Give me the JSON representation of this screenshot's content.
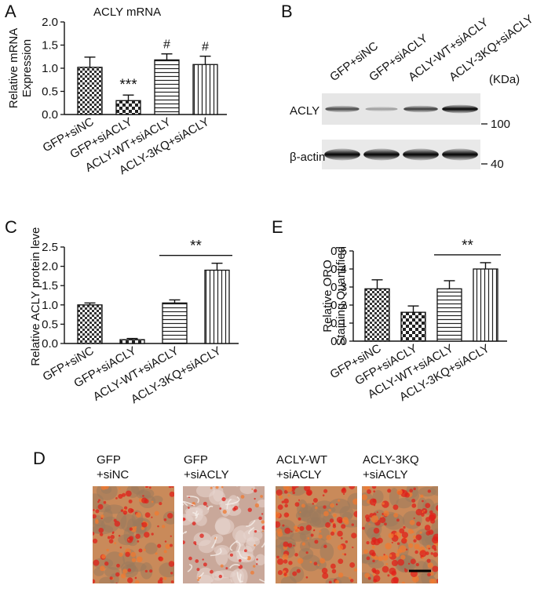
{
  "panels": {
    "A": {
      "letter": "A",
      "title": "ACLY mRNA"
    },
    "B": {
      "letter": "B"
    },
    "C": {
      "letter": "C"
    },
    "D": {
      "letter": "D"
    },
    "E": {
      "letter": "E"
    }
  },
  "blot": {
    "lanes": [
      "GFP+siNC",
      "GFP+siACLY",
      "ACLY-WT+siACLY",
      "ACLY-3KQ+siACLY"
    ],
    "unit_label": "(KDa)",
    "rows": [
      {
        "label": "ACLY",
        "marker": "100",
        "intensities": [
          0.55,
          0.18,
          0.6,
          0.95
        ]
      },
      {
        "label": "β-actin",
        "marker": "40",
        "intensities": [
          0.95,
          0.95,
          0.95,
          0.95
        ]
      }
    ]
  },
  "micrographs": {
    "captions": [
      "GFP\n+siNC",
      "GFP\n+siACLY",
      "ACLY-WT\n+siACLY",
      "ACLY-3KQ\n+siACLY"
    ],
    "stain_density": [
      0.5,
      0.1,
      0.55,
      0.8
    ]
  },
  "chart_data": [
    {
      "id": "A",
      "type": "bar",
      "title": "ACLY mRNA",
      "ylabel": "Relative mRNA\nExpression",
      "xlabel": "",
      "categories": [
        "GFP+siNC",
        "GFP+siACLY",
        "ACLY-WT+siACLY",
        "ACLY-3KQ+siACLY"
      ],
      "values": [
        1.02,
        0.3,
        1.18,
        1.08
      ],
      "errors": [
        0.22,
        0.12,
        0.13,
        0.18
      ],
      "patterns": [
        "checker",
        "checker-big",
        "hlines",
        "vlines"
      ],
      "annotations": [
        "",
        "***",
        "#",
        "#"
      ],
      "ylim": [
        0,
        2.0
      ],
      "yticks": [
        "0.0",
        "0.5",
        "1.0",
        "1.5",
        "2.0"
      ],
      "ytick_values": [
        0,
        0.5,
        1.0,
        1.5,
        2.0
      ],
      "grid": false
    },
    {
      "id": "C",
      "type": "bar",
      "title": "",
      "ylabel": "Relative ACLY protein level",
      "xlabel": "",
      "categories": [
        "GFP+siNC",
        "GFP+siACLY",
        "ACLY-WT+siACLY",
        "ACLY-3KQ+siACLY"
      ],
      "values": [
        1.0,
        0.1,
        1.05,
        1.9
      ],
      "errors": [
        0.05,
        0.03,
        0.08,
        0.18
      ],
      "patterns": [
        "checker",
        "checker-big",
        "hlines",
        "vlines"
      ],
      "significance": {
        "from": 2,
        "to": 3,
        "label": "**"
      },
      "ylim": [
        0,
        2.5
      ],
      "yticks": [
        "0.0",
        "0.5",
        "1.0",
        "1.5",
        "2.0",
        "2.5"
      ],
      "ytick_values": [
        0,
        0.5,
        1.0,
        1.5,
        2.0,
        2.5
      ],
      "grid": false
    },
    {
      "id": "E",
      "type": "bar",
      "title": "",
      "ylabel": "Relative ORO\nStaining Quantified",
      "xlabel": "",
      "categories": [
        "GFP+siNC",
        "GFP+siACLY",
        "ACLY-WT+siACLY",
        "ACLY-3KQ+siACLY"
      ],
      "values": [
        0.29,
        0.16,
        0.29,
        0.4
      ],
      "errors": [
        0.05,
        0.035,
        0.045,
        0.035
      ],
      "patterns": [
        "checker",
        "checker-big",
        "hlines",
        "vlines"
      ],
      "significance": {
        "from": 2,
        "to": 3,
        "label": "**"
      },
      "ylim": [
        0,
        0.5
      ],
      "yticks": [
        "0.0",
        "0.1",
        "0.2",
        "0.3",
        "0.4",
        "0.5"
      ],
      "ytick_values": [
        0,
        0.1,
        0.2,
        0.3,
        0.4,
        0.5
      ],
      "grid": false
    }
  ]
}
